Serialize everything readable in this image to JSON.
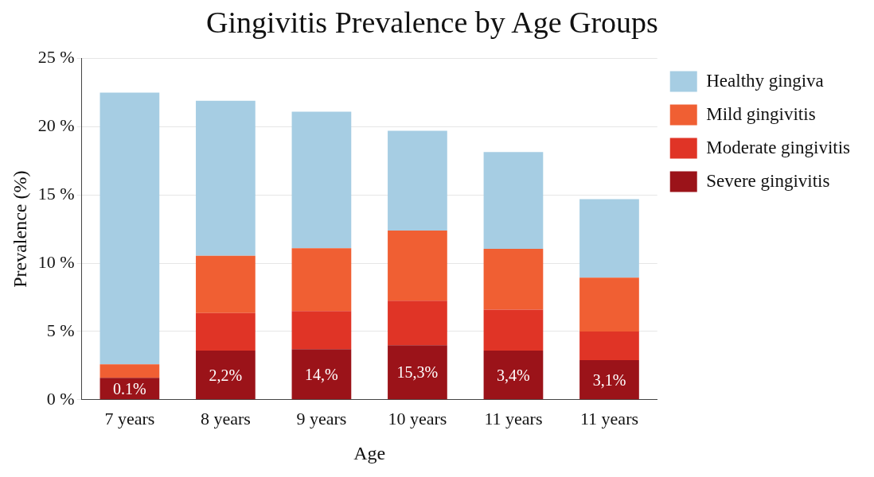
{
  "chart_data": {
    "type": "bar",
    "title": "Gingivitis Prevalence by Age Groups",
    "xlabel": "Age",
    "ylabel": "Prevalence (%)",
    "categories": [
      "7 years",
      "8 years",
      "9 years",
      "10 years",
      "11 years",
      "11 years"
    ],
    "stacked": true,
    "series": [
      {
        "name": "Severe gingivitis",
        "color": "#9b1319",
        "values": [
          1.6,
          3.6,
          3.7,
          4.0,
          3.6,
          2.9
        ]
      },
      {
        "name": "Moderate gingivitis",
        "color": "#e03426",
        "values": [
          0,
          2.75,
          2.8,
          3.25,
          3.0,
          2.1
        ]
      },
      {
        "name": "Mild gingivitis",
        "color": "#f05f33",
        "values": [
          1.0,
          4.2,
          4.6,
          5.15,
          4.45,
          3.95
        ]
      },
      {
        "name": "Healthy gingiva",
        "color": "#a6cde3",
        "values": [
          19.9,
          11.35,
          10.0,
          7.3,
          7.1,
          5.75
        ]
      }
    ],
    "ylim": [
      0,
      25
    ],
    "yticks": [
      {
        "value": 0,
        "label": "0 %"
      },
      {
        "value": 5,
        "label": "5 %"
      },
      {
        "value": 10,
        "label": "10 %"
      },
      {
        "value": 15,
        "label": "15 %"
      },
      {
        "value": 20,
        "label": "20 %"
      },
      {
        "value": 25,
        "label": "25 %"
      }
    ],
    "grid": "y",
    "legend": "top right",
    "annotations": [
      "0.1%",
      "2,2%",
      "14,%",
      "15,3%",
      "3,4%",
      "3,1%"
    ]
  }
}
